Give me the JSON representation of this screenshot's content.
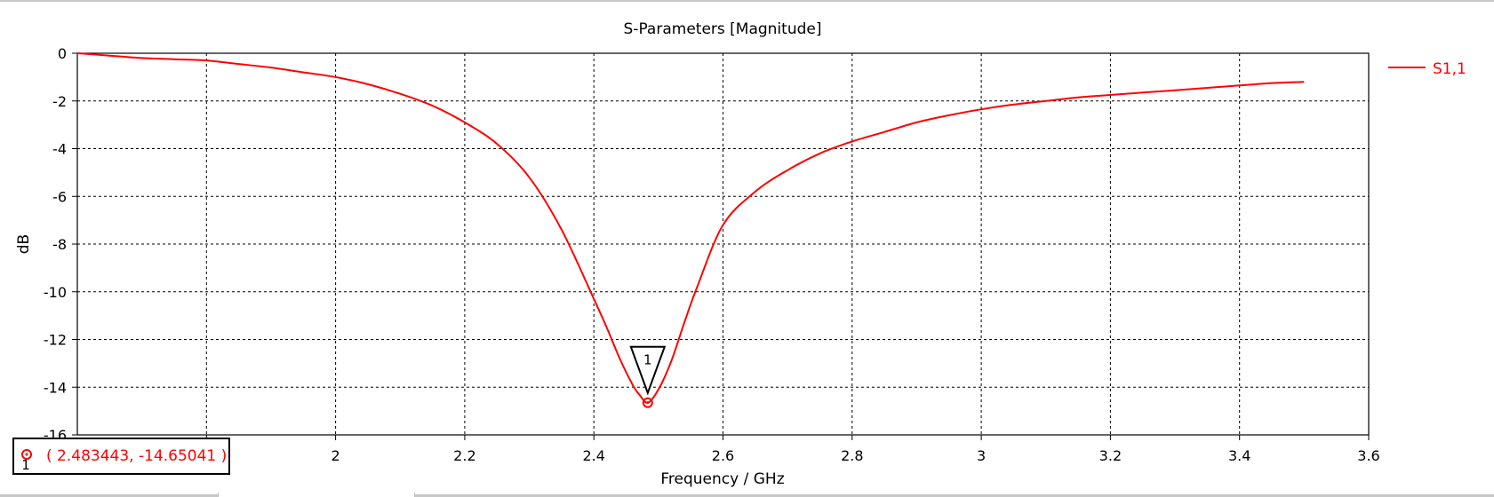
{
  "chart_data": {
    "type": "line",
    "title": "S-Parameters [Magnitude]",
    "xlabel": "Frequency / GHz",
    "ylabel": "dB",
    "xlim": [
      1.6,
      3.6
    ],
    "ylim": [
      -16,
      0
    ],
    "xticks": [
      "1.8",
      "2",
      "2.2",
      "2.4",
      "2.6",
      "2.8",
      "3",
      "3.2",
      "3.4",
      "3.6"
    ],
    "yticks": [
      "0",
      "-2",
      "-4",
      "-6",
      "-8",
      "-10",
      "-12",
      "-14",
      "-16"
    ],
    "grid": true,
    "legend_position": "right",
    "colors": {
      "series": "#ff0000",
      "grid": "#000000",
      "axis": "#000000"
    },
    "series": [
      {
        "name": "S1,1",
        "x": [
          1.6,
          1.65,
          1.7,
          1.75,
          1.8,
          1.85,
          1.9,
          1.95,
          2.0,
          2.05,
          2.1,
          2.15,
          2.2,
          2.25,
          2.3,
          2.35,
          2.4,
          2.42,
          2.44,
          2.46,
          2.47,
          2.4834,
          2.5,
          2.52,
          2.54,
          2.56,
          2.6,
          2.65,
          2.7,
          2.75,
          2.8,
          2.85,
          2.9,
          2.95,
          3.0,
          3.05,
          3.1,
          3.15,
          3.2,
          3.25,
          3.3,
          3.35,
          3.4,
          3.45,
          3.5
        ],
        "y": [
          0.0,
          -0.1,
          -0.2,
          -0.25,
          -0.3,
          -0.45,
          -0.6,
          -0.8,
          -1.0,
          -1.3,
          -1.7,
          -2.2,
          -2.9,
          -3.8,
          -5.2,
          -7.4,
          -10.3,
          -11.5,
          -12.8,
          -13.9,
          -14.3,
          -14.65,
          -14.1,
          -12.9,
          -11.3,
          -9.8,
          -7.2,
          -5.8,
          -4.9,
          -4.2,
          -3.7,
          -3.3,
          -2.9,
          -2.6,
          -2.35,
          -2.15,
          -2.0,
          -1.85,
          -1.75,
          -1.65,
          -1.55,
          -1.45,
          -1.35,
          -1.25,
          -1.2
        ]
      }
    ],
    "marker": {
      "id": "1",
      "x": 2.483443,
      "y": -14.65041,
      "readout": "( 2.483443, -14.65041 )"
    }
  }
}
